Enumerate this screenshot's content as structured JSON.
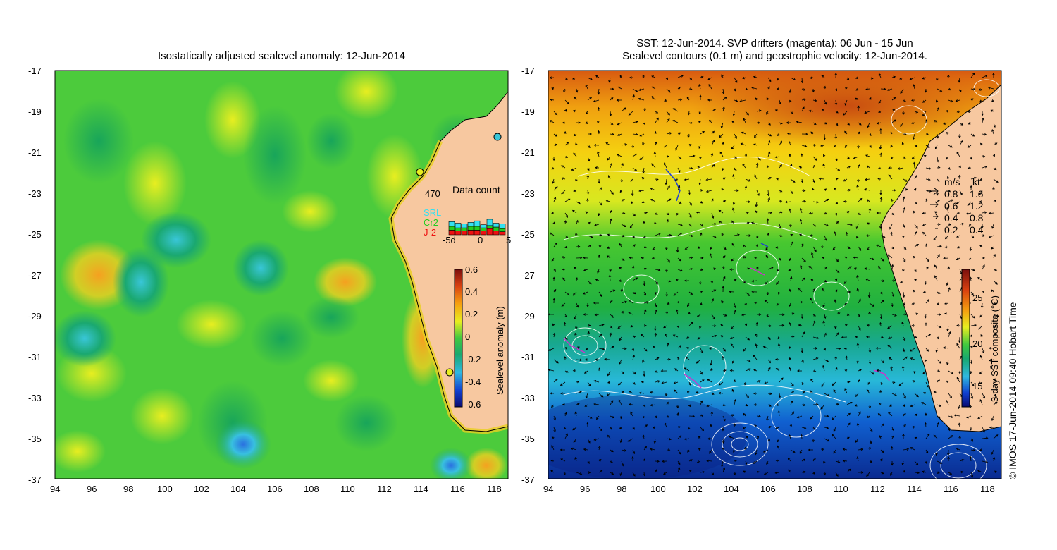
{
  "left_panel": {
    "title": "Isostatically adjusted sealevel anomaly: 12-Jun-2014",
    "x_ticks": [
      "94",
      "96",
      "98",
      "100",
      "102",
      "104",
      "106",
      "108",
      "110",
      "112",
      "114",
      "116",
      "118"
    ],
    "y_ticks": [
      "-17",
      "-19",
      "-21",
      "-23",
      "-25",
      "-27",
      "-29",
      "-31",
      "-33",
      "-35",
      "-37"
    ],
    "colorbar": {
      "label": "Sealevel anomaly (m)",
      "ticks": [
        "0.6",
        "0.4",
        "0.2",
        "0",
        "-0.2",
        "-0.4",
        "-0.6"
      ]
    },
    "inset": {
      "title": "Data count",
      "max_label": "470",
      "series_labels": [
        "SRL",
        "Cr2",
        "J-2"
      ],
      "series_colors": [
        "#35e0f0",
        "#22cc22",
        "#ee1111"
      ],
      "x_ticks": [
        "-5d",
        "0",
        "5"
      ],
      "values": [
        {
          "srl": 0.3,
          "cr2": 0.25,
          "j2": 0.3
        },
        {
          "srl": 0.3,
          "cr2": 0.2,
          "j2": 0.25
        },
        {
          "srl": 0.25,
          "cr2": 0.2,
          "j2": 0.25
        },
        {
          "srl": 0.25,
          "cr2": 0.25,
          "j2": 0.3
        },
        {
          "srl": 0.35,
          "cr2": 0.25,
          "j2": 0.3
        },
        {
          "srl": 0.2,
          "cr2": 0.2,
          "j2": 0.25
        },
        {
          "srl": 0.4,
          "cr2": 0.2,
          "j2": 0.4
        },
        {
          "srl": 0.25,
          "cr2": 0.25,
          "j2": 0.25
        },
        {
          "srl": 0.3,
          "cr2": 0.2,
          "j2": 0.2
        }
      ]
    }
  },
  "right_panel": {
    "title_line1": "SST: 12-Jun-2014. SVP drifters (magenta): 06 Jun - 15 Jun",
    "title_line2": "Sealevel contours (0.1 m) and geostrophic velocity: 12-Jun-2014.",
    "x_ticks": [
      "94",
      "96",
      "98",
      "100",
      "102",
      "104",
      "106",
      "108",
      "110",
      "112",
      "114",
      "116",
      "118"
    ],
    "y_ticks": [
      "-17",
      "-19",
      "-21",
      "-23",
      "-25",
      "-27",
      "-29",
      "-31",
      "-33",
      "-35",
      "-37"
    ],
    "colorbar": {
      "label": "3-day SST composite (°C)",
      "ticks": [
        "25",
        "20",
        "15"
      ]
    },
    "velocity_legend": {
      "header_ms": "m/s",
      "header_kt": "kt",
      "rows": [
        {
          "ms": "0.8",
          "kt": "1.6"
        },
        {
          "ms": "0.6",
          "kt": "1.2"
        },
        {
          "ms": "0.4",
          "kt": "0.8"
        },
        {
          "ms": "0.2",
          "kt": "0.4"
        }
      ]
    }
  },
  "credit": "© IMOS 17-Jun-2014 09:40 Hobart Time",
  "colors": {
    "land": "#f7c8a0",
    "coast": "#000000",
    "contour": "#ffffff",
    "drifter": "#cc33cc"
  }
}
